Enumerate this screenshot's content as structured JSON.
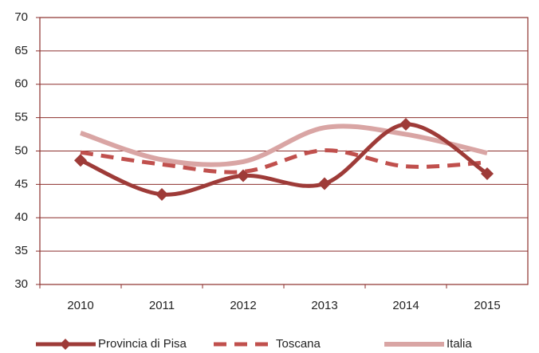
{
  "chart_data": {
    "type": "line",
    "categories": [
      "2010",
      "2011",
      "2012",
      "2013",
      "2014",
      "2015"
    ],
    "series": [
      {
        "name": "Provincia di Pisa",
        "color": "#9e3b38",
        "linestyle": "solid",
        "marker": "diamond",
        "values": [
          48.6,
          43.5,
          46.3,
          45.1,
          54.0,
          46.6
        ]
      },
      {
        "name": "Toscana",
        "color": "#c0504d",
        "linestyle": "dashed",
        "values": [
          49.8,
          48.0,
          46.9,
          50.1,
          47.7,
          48.3
        ]
      },
      {
        "name": "Italia",
        "color": "#d9a5a4",
        "linestyle": "solid",
        "values": [
          52.7,
          48.7,
          48.4,
          53.5,
          52.5,
          49.7
        ]
      }
    ],
    "ylim": [
      30,
      70
    ],
    "yticks": [
      30,
      35,
      40,
      45,
      50,
      55,
      60,
      65,
      70
    ],
    "grid": true,
    "smooth": true,
    "legend": "bottom"
  }
}
